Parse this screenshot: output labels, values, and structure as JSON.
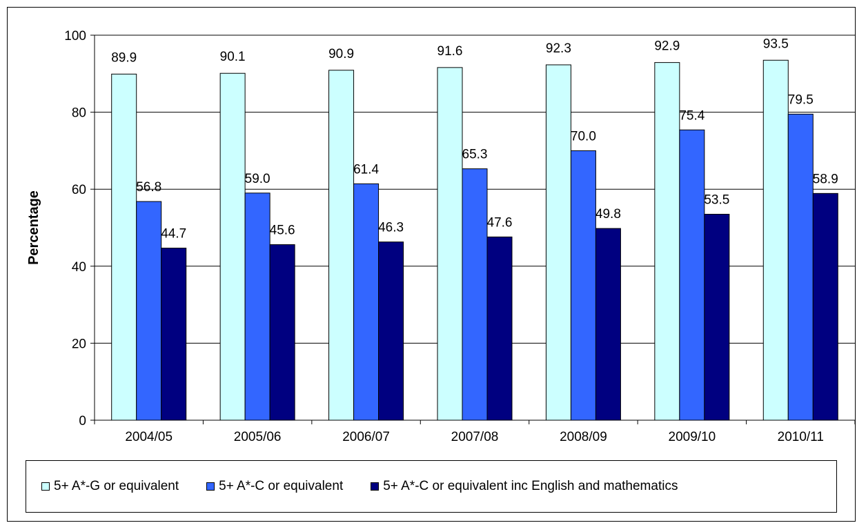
{
  "chart_data": {
    "type": "bar",
    "title": "",
    "xlabel": "",
    "ylabel": "Percentage",
    "ylim": [
      0,
      100
    ],
    "yticks": [
      0,
      20,
      40,
      60,
      80,
      100
    ],
    "grid": "horizontal",
    "legend_position": "bottom",
    "categories": [
      "2004/05",
      "2005/06",
      "2006/07",
      "2007/08",
      "2008/09",
      "2009/10",
      "2010/11"
    ],
    "series": [
      {
        "name": "5+ A*-G or equivalent",
        "color": "#ccffff",
        "values": [
          89.9,
          90.1,
          90.9,
          91.6,
          92.3,
          92.9,
          93.5
        ],
        "labels": [
          "89.9",
          "90.1",
          "90.9",
          "91.6",
          "92.3",
          "92.9",
          "93.5"
        ]
      },
      {
        "name": "5+ A*-C or equivalent",
        "color": "#3366ff",
        "values": [
          56.8,
          59.0,
          61.4,
          65.3,
          70.0,
          75.4,
          79.5
        ],
        "labels": [
          "56.8",
          "59.0",
          "61.4",
          "65.3",
          "70.0",
          "75.4",
          "79.5"
        ]
      },
      {
        "name": "5+ A*-C or equivalent inc English and mathematics",
        "color": "#000080",
        "values": [
          44.7,
          45.6,
          46.3,
          47.6,
          49.8,
          53.5,
          58.9
        ],
        "labels": [
          "44.7",
          "45.6",
          "46.3",
          "47.6",
          "49.8",
          "53.5",
          "58.9"
        ]
      }
    ]
  }
}
